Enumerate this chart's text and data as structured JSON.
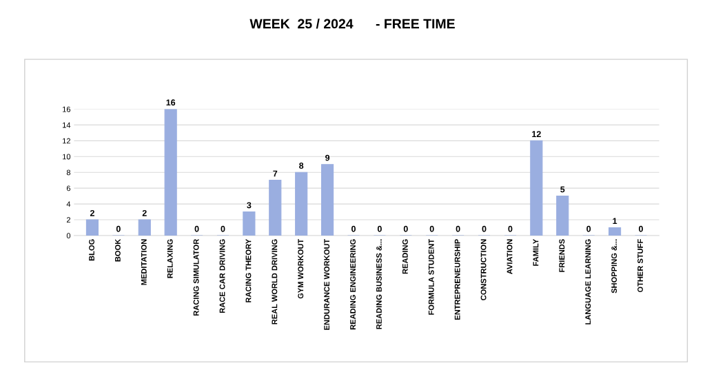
{
  "chart_data": {
    "type": "bar",
    "title": "WEEK  25 / 2024      - FREE TIME",
    "categories": [
      "BLOG",
      "BOOK",
      "MEDITATION",
      "RELAXING",
      "RACING SIMULATOR",
      "RACE CAR DRIVING",
      "RACING THEORY",
      "REAL WORLD DRIVING",
      "GYM WORKOUT",
      "ENDURANCE WORKOUT",
      "READING ENGINEERING",
      "READING BUSINESS &...",
      "READING",
      "FORMULA STUDENT",
      "ENTREPRENEURSHIP",
      "CONSTRUCTION",
      "AVIATION",
      "FAMILY",
      "FRIENDS",
      "LANGUAGE LEARNING",
      "SHOPPING &...",
      "OTHER STUFF"
    ],
    "values": [
      2,
      0,
      2,
      16,
      0,
      0,
      3,
      7,
      8,
      9,
      0,
      0,
      0,
      0,
      0,
      0,
      0,
      12,
      5,
      0,
      1,
      0
    ],
    "color": "#9aaee0",
    "ylim": [
      0,
      16
    ],
    "yticks": [
      0,
      2,
      4,
      6,
      8,
      10,
      12,
      14,
      16
    ],
    "grid": "y",
    "data_labels": true
  }
}
